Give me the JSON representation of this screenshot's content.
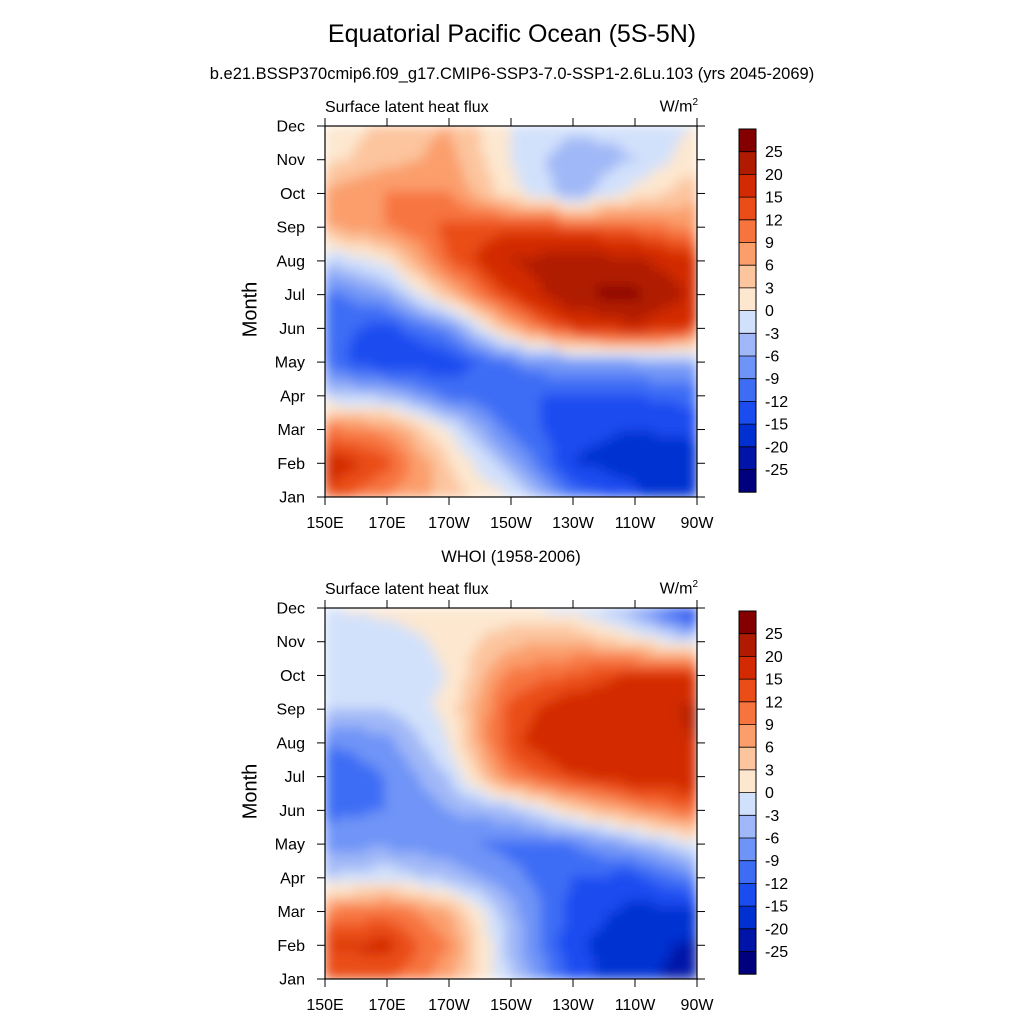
{
  "chart_data": [
    {
      "type": "heatmap",
      "title": "Equatorial Pacific Ocean (5S-5N)",
      "subtitle": "b.e21.BSSP370cmip6.f09_g17.CMIP6-SSP3-7.0-SSP1-2.6Lu.103 (yrs 2045-2069)",
      "left_title": "Surface latent heat flux",
      "units": "W/m",
      "units_sup": "2",
      "xlabel": "",
      "ylabel": "Month",
      "x_ticks": [
        "150E",
        "170E",
        "170W",
        "150W",
        "130W",
        "110W",
        "90W"
      ],
      "y_ticks": [
        "Jan",
        "Feb",
        "Mar",
        "Apr",
        "May",
        "Jun",
        "Jul",
        "Aug",
        "Sep",
        "Oct",
        "Nov",
        "Dec"
      ],
      "x_range_deg_east": [
        150,
        270
      ],
      "x_grid_deg_east": [
        150,
        170,
        190,
        210,
        230,
        250,
        270
      ],
      "values": [
        [
          14,
          9,
          5,
          0,
          -10,
          -14,
          -19
        ],
        [
          18,
          13,
          3,
          -5,
          -15,
          -17,
          -17
        ],
        [
          10,
          8,
          0,
          -10,
          -14,
          -15,
          -14
        ],
        [
          -3,
          -4,
          -10,
          -12,
          -12,
          -12,
          -11
        ],
        [
          -10,
          -15,
          -14,
          -9,
          -6,
          -6,
          -5
        ],
        [
          -11,
          -13,
          -8,
          6,
          15,
          19,
          14
        ],
        [
          -10,
          -6,
          5,
          15,
          25,
          26,
          19
        ],
        [
          -3,
          1,
          12,
          20,
          23,
          21,
          16
        ],
        [
          6,
          9,
          13,
          14,
          13,
          11,
          8
        ],
        [
          7,
          9,
          9,
          1,
          -5,
          1,
          5
        ],
        [
          2,
          5,
          7,
          0,
          -5,
          -3,
          2
        ],
        [
          0,
          4,
          6,
          0,
          -2,
          -2,
          0
        ]
      ]
    },
    {
      "type": "heatmap",
      "title": "WHOI (1958-2006)",
      "left_title": "Surface latent heat flux",
      "units": "W/m",
      "units_sup": "2",
      "xlabel": "",
      "ylabel": "Month",
      "x_ticks": [
        "150E",
        "170E",
        "170W",
        "150W",
        "130W",
        "110W",
        "90W"
      ],
      "y_ticks": [
        "Jan",
        "Feb",
        "Mar",
        "Apr",
        "May",
        "Jun",
        "Jul",
        "Aug",
        "Sep",
        "Oct",
        "Nov",
        "Dec"
      ],
      "x_range_deg_east": [
        150,
        270
      ],
      "x_grid_deg_east": [
        150,
        170,
        190,
        210,
        230,
        250,
        270
      ],
      "values": [
        [
          12,
          13,
          7,
          -3,
          -13,
          -18,
          -23
        ],
        [
          15,
          16,
          9,
          -4,
          -14,
          -18,
          -21
        ],
        [
          9,
          11,
          6,
          -5,
          -13,
          -16,
          -16
        ],
        [
          -3,
          -1,
          -4,
          -8,
          -12,
          -13,
          -8
        ],
        [
          -7,
          -7,
          -8,
          -10,
          -9,
          -5,
          0
        ],
        [
          -10,
          -9,
          -6,
          -4,
          3,
          8,
          12
        ],
        [
          -12,
          -9,
          -3,
          10,
          15,
          18,
          18
        ],
        [
          -9,
          -7,
          0,
          14,
          19,
          17,
          20
        ],
        [
          -3,
          -3,
          1,
          13,
          18,
          18,
          21
        ],
        [
          -3,
          -2,
          0,
          10,
          12,
          16,
          15
        ],
        [
          -3,
          -2,
          1,
          5,
          6,
          2,
          -2
        ],
        [
          0,
          1,
          2,
          0,
          -1,
          -6,
          -18
        ]
      ]
    }
  ],
  "colorbar": {
    "levels": [
      -25,
      -20,
      -15,
      -12,
      -9,
      -6,
      -3,
      0,
      3,
      6,
      9,
      12,
      15,
      20,
      25
    ],
    "labels": [
      "25",
      "20",
      "15",
      "12",
      "9",
      "6",
      "3",
      "0",
      "-3",
      "-6",
      "-9",
      "-12",
      "-15",
      "-20",
      "-25"
    ],
    "colors": [
      "#00007f",
      "#0014a8",
      "#0030d2",
      "#1a4cf0",
      "#3d6df5",
      "#6f94f7",
      "#a0b8f7",
      "#d2e1fb",
      "#fde7cf",
      "#fcc59e",
      "#fb9e6c",
      "#f7743f",
      "#ea4d17",
      "#d32a04",
      "#b01a00",
      "#840000"
    ]
  }
}
